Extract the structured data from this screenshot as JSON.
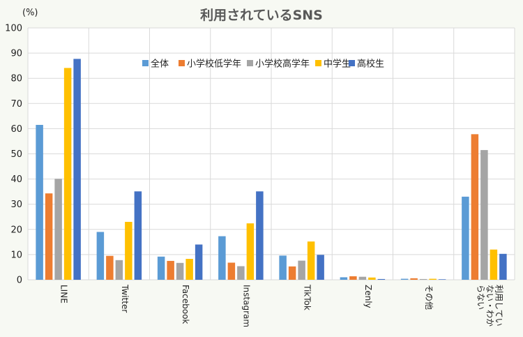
{
  "chart_data": {
    "type": "bar",
    "title": "利用されているSNS",
    "unit_label": "(%)",
    "xlabel": "",
    "ylabel": "",
    "ylim": [
      0,
      100
    ],
    "yticks": [
      0,
      10,
      20,
      30,
      40,
      50,
      60,
      70,
      80,
      90,
      100
    ],
    "grid": true,
    "legend_position": "top-center",
    "categories": [
      [
        "LINE"
      ],
      [
        "Twitter"
      ],
      [
        "Facebook"
      ],
      [
        "Instagram"
      ],
      [
        "TikTok"
      ],
      [
        "Zenly"
      ],
      [
        "その他"
      ],
      [
        "利用してい",
        "ない・わか",
        "らない"
      ]
    ],
    "series": [
      {
        "name": "全体",
        "color": "#5b9bd5",
        "values": [
          61.5,
          19,
          9.2,
          17.3,
          9.6,
          1,
          0.4,
          33
        ]
      },
      {
        "name": "小学校低学年",
        "color": "#ed7d31",
        "values": [
          34.3,
          9.5,
          7.5,
          6.8,
          5.3,
          1.4,
          0.6,
          57.8
        ]
      },
      {
        "name": "小学校高学年",
        "color": "#a5a5a5",
        "values": [
          40.1,
          7.8,
          6.7,
          5.4,
          7.6,
          1.2,
          0.3,
          51.5
        ]
      },
      {
        "name": "中学生",
        "color": "#ffc000",
        "values": [
          84.1,
          23,
          8.3,
          22.4,
          15.2,
          0.9,
          0.4,
          12
        ]
      },
      {
        "name": "高校生",
        "color": "#4472c4",
        "values": [
          87.7,
          35.1,
          14,
          35.1,
          9.9,
          0.3,
          0.2,
          10.3
        ]
      }
    ]
  }
}
